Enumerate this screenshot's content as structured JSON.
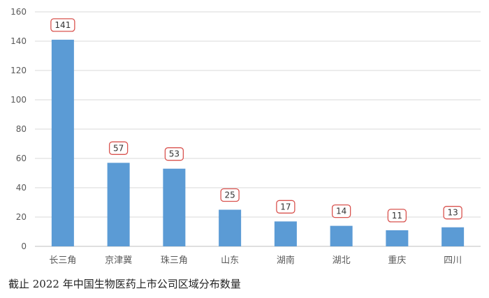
{
  "chart_data": {
    "type": "bar",
    "categories": [
      "长三角",
      "京津冀",
      "珠三角",
      "山东",
      "湖南",
      "湖北",
      "重庆",
      "四川"
    ],
    "values": [
      141,
      57,
      53,
      25,
      17,
      14,
      11,
      13
    ],
    "data_labels": [
      "141",
      "57",
      "53",
      "25",
      "17",
      "14",
      "11",
      "13"
    ],
    "ylim": [
      0,
      160
    ],
    "yticks": [
      0,
      20,
      40,
      60,
      80,
      100,
      120,
      140,
      160
    ],
    "grid": true,
    "colors": {
      "bar": "#5b9bd5",
      "label_border": "#d9534f",
      "grid": "#d9d9d9",
      "text": "#595959"
    }
  },
  "caption": "截止 2022 年中国生物医药上市公司区域分布数量"
}
